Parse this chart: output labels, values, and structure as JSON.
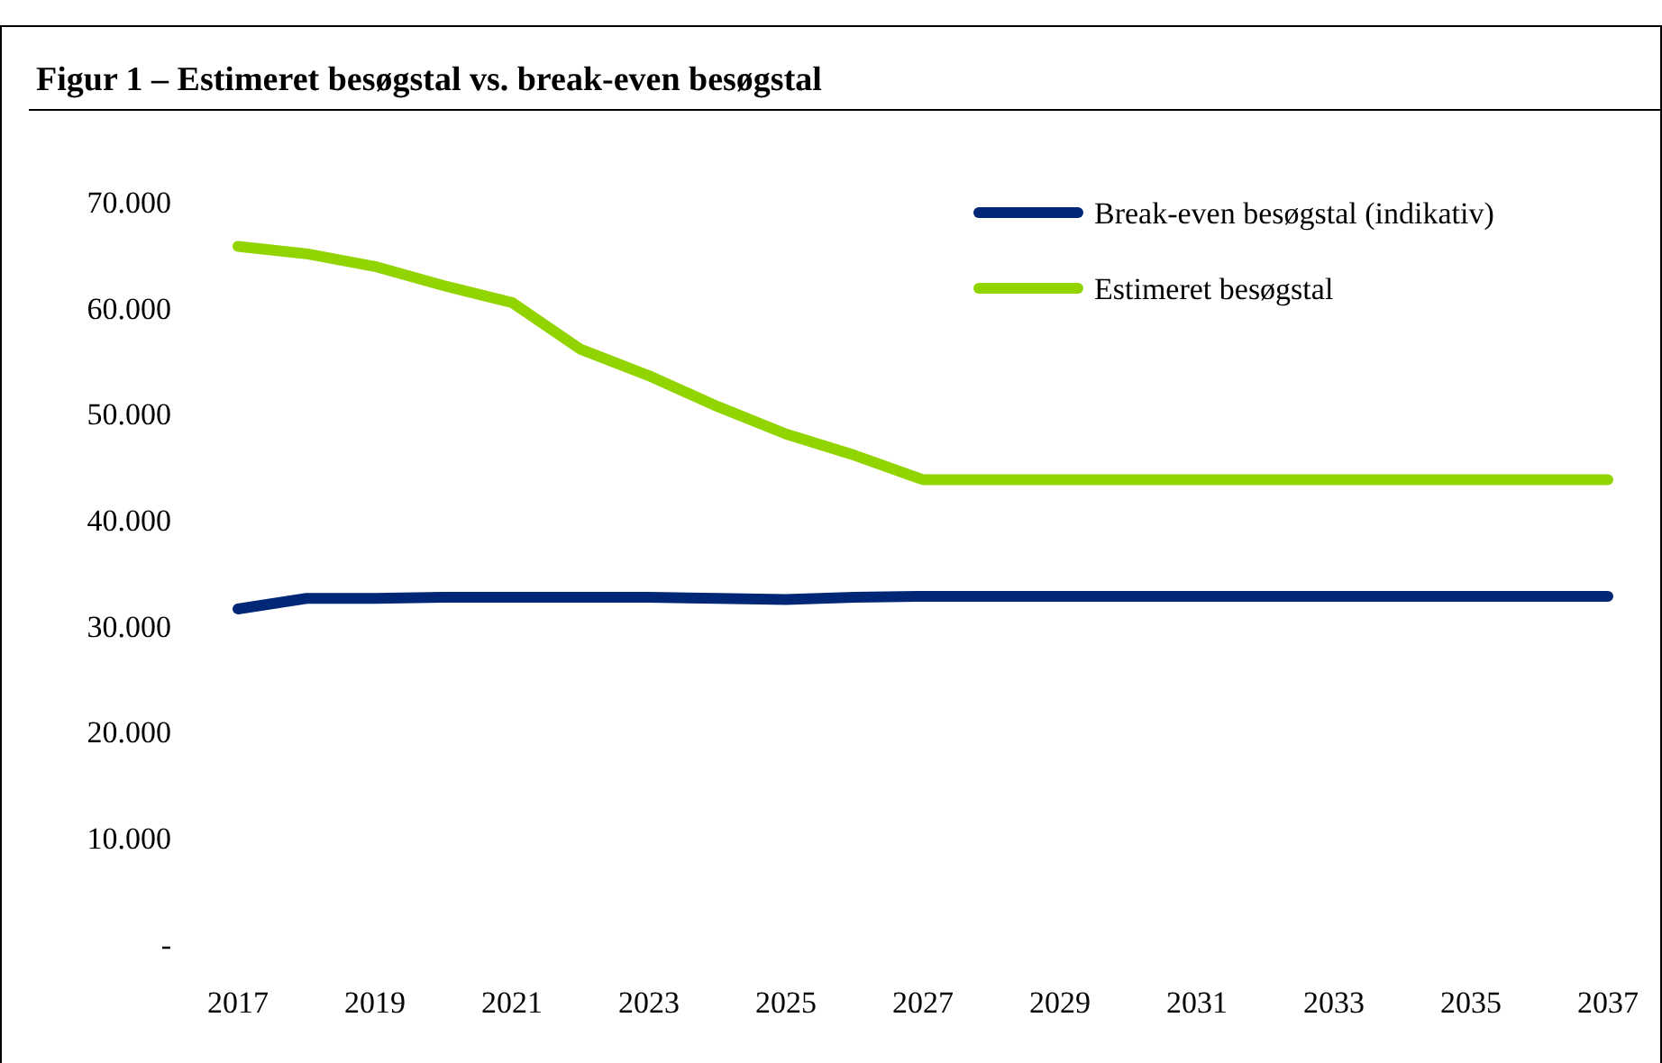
{
  "chart_data": {
    "type": "line",
    "title": "Figur 1 – Estimeret besøgstal vs. break-even besøgstal",
    "categories": [
      "2017",
      null,
      "2019",
      null,
      "2021",
      null,
      "2023",
      null,
      "2025",
      null,
      "2027",
      null,
      "2029",
      null,
      "2031",
      null,
      "2033",
      null,
      "2035",
      null,
      "2037"
    ],
    "series": [
      {
        "name": "Break-even besøgstal (indikativ)",
        "color": "#002776",
        "values": [
          31600,
          32600,
          32600,
          32700,
          32700,
          32700,
          32700,
          32600,
          32500,
          32700,
          32800,
          32800,
          32800,
          32800,
          32800,
          32800,
          32800,
          32800,
          32800,
          32800,
          32800
        ]
      },
      {
        "name": "Estimeret besøgstal",
        "color": "#92d400",
        "values": [
          65800,
          65100,
          63900,
          62100,
          60500,
          56100,
          53600,
          50700,
          48100,
          46100,
          43800,
          43800,
          43800,
          43800,
          43800,
          43800,
          43800,
          43800,
          43800,
          43800,
          43800
        ]
      }
    ],
    "ylim": [
      0,
      70000
    ],
    "yticks": [
      {
        "value": 0,
        "label": "-"
      },
      {
        "value": 10000,
        "label": "10.000"
      },
      {
        "value": 20000,
        "label": "20.000"
      },
      {
        "value": 30000,
        "label": "30.000"
      },
      {
        "value": 40000,
        "label": "40.000"
      },
      {
        "value": 50000,
        "label": "50.000"
      },
      {
        "value": 60000,
        "label": "60.000"
      },
      {
        "value": 70000,
        "label": "70.000"
      }
    ],
    "legend": "top right",
    "line_style": "solid",
    "marker": "none"
  }
}
